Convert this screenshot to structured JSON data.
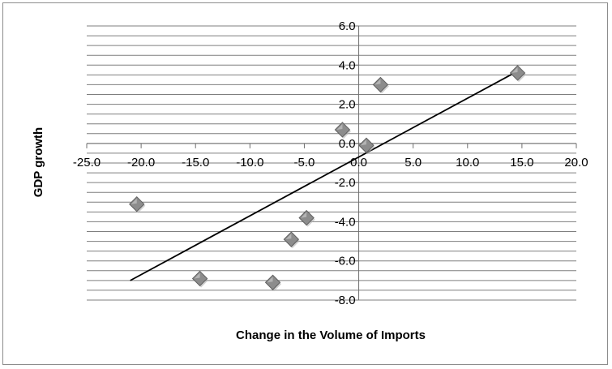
{
  "chart_data": {
    "type": "scatter",
    "title": "",
    "xlabel": "Change in the Volume of Imports",
    "ylabel": "GDP growth",
    "xlim": [
      -25,
      20
    ],
    "ylim": [
      -8,
      6
    ],
    "x_ticks": [
      -25,
      -20,
      -15,
      -10,
      -5,
      0,
      5,
      10,
      15,
      20
    ],
    "x_tick_labels": [
      "-25.0",
      "-20.0",
      "-15.0",
      "-10.0",
      "-5.0",
      "0.0",
      "5.0",
      "10.0",
      "15.0",
      "20.0"
    ],
    "y_ticks": [
      6,
      4,
      2,
      0,
      -2,
      -4,
      -6,
      -8
    ],
    "y_tick_labels": [
      "6.0",
      "4.0",
      "2.0",
      "0.0",
      "-2.0",
      "-4.0",
      "-6.0",
      "-8.0"
    ],
    "minor_grid_step": 0.5,
    "grid": true,
    "legend": false,
    "points": [
      {
        "x": -20.4,
        "y": -3.1
      },
      {
        "x": -14.6,
        "y": -6.9
      },
      {
        "x": -7.9,
        "y": -7.1
      },
      {
        "x": -6.2,
        "y": -4.9
      },
      {
        "x": -4.8,
        "y": -3.8
      },
      {
        "x": -1.5,
        "y": 0.7
      },
      {
        "x": 0.7,
        "y": -0.1
      },
      {
        "x": 2.0,
        "y": 3.0
      },
      {
        "x": 14.6,
        "y": 3.6
      }
    ],
    "trendline": {
      "x": [
        -21.0,
        14.3
      ],
      "y": [
        -7.0,
        3.6
      ]
    },
    "colors": {
      "marker_fill": "#8c8c8c",
      "marker_stroke": "#5f5f5f",
      "grid": "#7f7f7f",
      "trendline": "#000000"
    }
  }
}
